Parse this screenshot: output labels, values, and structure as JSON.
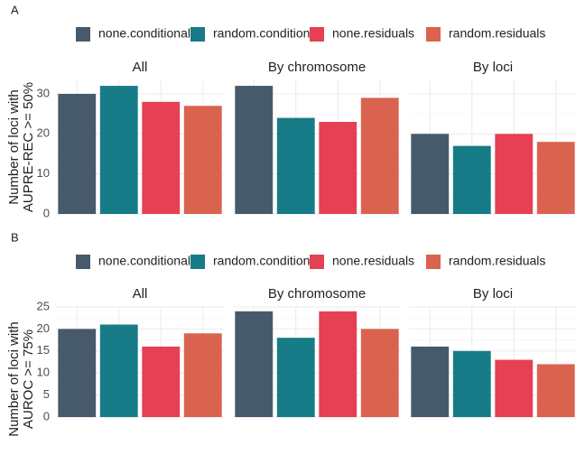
{
  "chart_data": [
    {
      "type": "bar",
      "label": "A",
      "categories": [
        "All",
        "By chromosome",
        "By loci"
      ],
      "ylabel": [
        "Number of loci with",
        "AUPRE-REC >= 50%"
      ],
      "series": [
        {
          "name": "none.conditional",
          "color": "#465a6b",
          "values": [
            30,
            32,
            20
          ]
        },
        {
          "name": "random.conditional",
          "color": "#177b88",
          "values": [
            32,
            24,
            17
          ]
        },
        {
          "name": "none.residuals",
          "color": "#e54053",
          "values": [
            28,
            23,
            20
          ]
        },
        {
          "name": "random.residuals",
          "color": "#d9634f",
          "values": [
            27,
            29,
            18
          ]
        }
      ],
      "ylim": [
        0,
        33.6
      ],
      "yticks": [
        0,
        10,
        20,
        30
      ],
      "grid": true
    },
    {
      "type": "bar",
      "label": "B",
      "categories": [
        "All",
        "By chromosome",
        "By loci"
      ],
      "ylabel": [
        "Number of loci with",
        "AUROC >= 75%"
      ],
      "series": [
        {
          "name": "none.conditional",
          "color": "#465a6b",
          "values": [
            20,
            24,
            16
          ]
        },
        {
          "name": "random.conditional",
          "color": "#177b88",
          "values": [
            21,
            18,
            15
          ]
        },
        {
          "name": "none.residuals",
          "color": "#e54053",
          "values": [
            16,
            24,
            13
          ]
        },
        {
          "name": "random.residuals",
          "color": "#d9634f",
          "values": [
            19,
            20,
            12
          ]
        }
      ],
      "ylim": [
        0,
        25.2
      ],
      "yticks": [
        0,
        5,
        10,
        15,
        20,
        25
      ],
      "grid": true
    }
  ]
}
